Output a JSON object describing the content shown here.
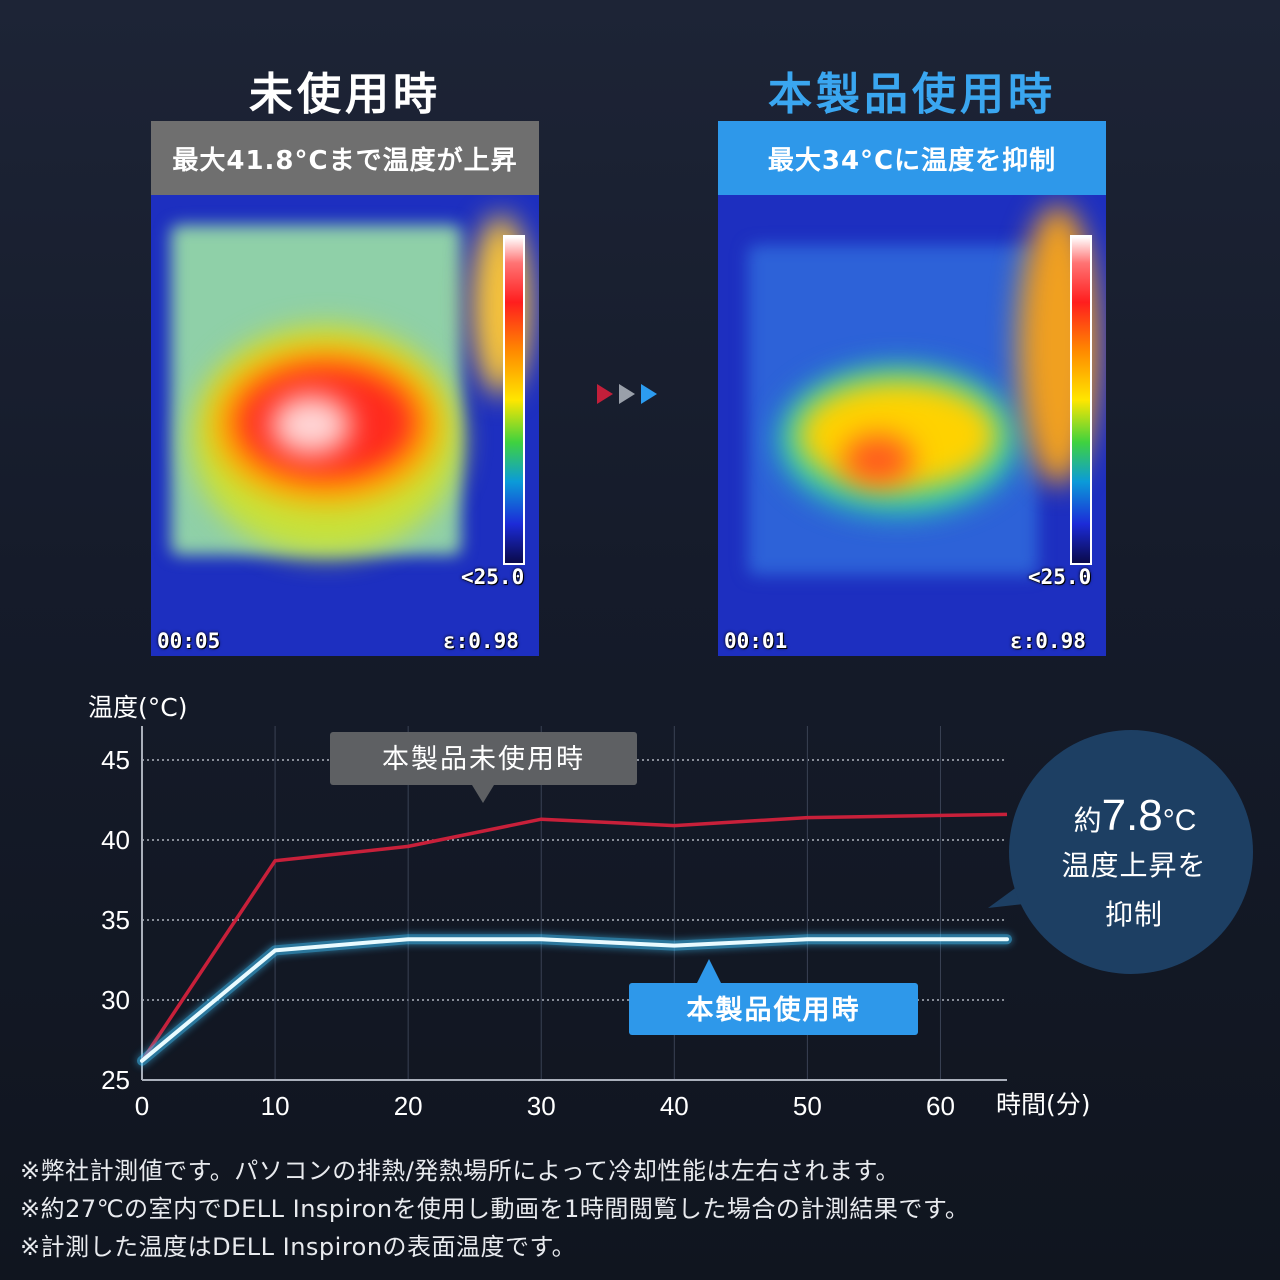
{
  "left_panel": {
    "title": "未使用時",
    "banner": "最大41.8°Cまで温度が上昇",
    "scale_min": "<25.0",
    "time": "00:05",
    "emissivity": "ε:0.98"
  },
  "right_panel": {
    "title": "本製品使用時",
    "banner": "最大34°Cに温度を抑制",
    "scale_min": "<25.0",
    "time": "00:01",
    "emissivity": "ε:0.98"
  },
  "colors": {
    "unused_line": "#c8203a",
    "used_line": "#3fc6ff",
    "accent_blue": "#2e98ea",
    "bubble": "#1d3f63"
  },
  "chart_data": {
    "type": "line",
    "ylabel": "温度(°C)",
    "xlabel": "時間(分)",
    "xlim": [
      0,
      65
    ],
    "ylim": [
      25,
      47
    ],
    "x_ticks": [
      0,
      10,
      20,
      30,
      40,
      50,
      60
    ],
    "y_ticks": [
      25,
      30,
      35,
      40,
      45
    ],
    "grid": true,
    "series": [
      {
        "name": "本製品未使用時",
        "x": [
          0,
          10,
          20,
          30,
          40,
          50,
          65
        ],
        "y": [
          26.2,
          38.7,
          39.6,
          41.3,
          40.9,
          41.4,
          41.6
        ]
      },
      {
        "name": "本製品使用時",
        "x": [
          0,
          10,
          20,
          30,
          40,
          50,
          65
        ],
        "y": [
          26.2,
          33.1,
          33.8,
          33.8,
          33.4,
          33.8,
          33.8
        ]
      }
    ],
    "annotation": {
      "line1_prefix": "約",
      "line1_value": "7.8",
      "line1_unit": "°C",
      "line2": "温度上昇を",
      "line3": "抑制"
    }
  },
  "footnotes": [
    "※弊社計測値です。パソコンの排熱/発熱場所によって冷却性能は左右されます。",
    "※約27℃の室内でDELL Inspironを使用し動画を1時間閲覧した場合の計測結果です。",
    "※計測した温度はDELL Inspironの表面温度です。"
  ]
}
